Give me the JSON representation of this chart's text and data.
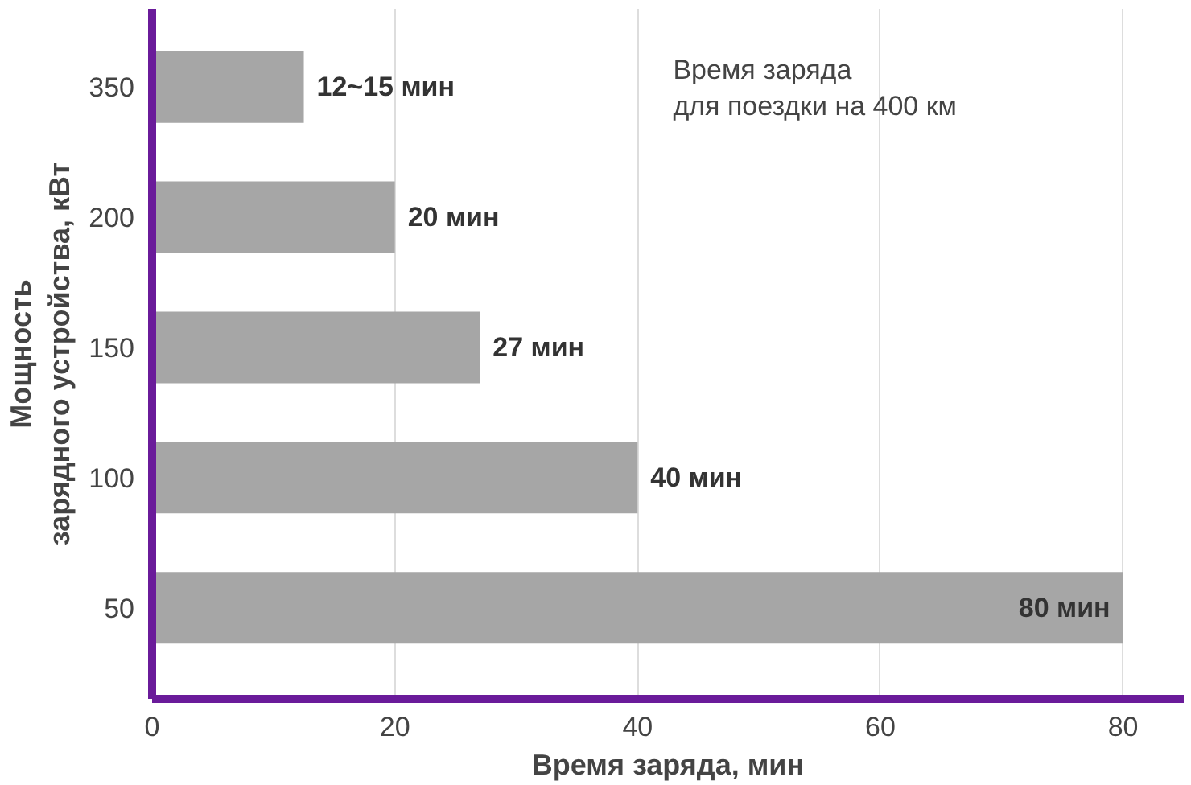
{
  "chart_data": {
    "type": "bar",
    "orientation": "horizontal",
    "xlabel": "Время заряда, мин",
    "ylabel": "Мощность\nзарядного устройства, кВт",
    "categories": [
      "350",
      "200",
      "150",
      "100",
      "50"
    ],
    "values": [
      12.5,
      20,
      27,
      40,
      80
    ],
    "value_labels": [
      "12~15 мин",
      "20 мин",
      "27 мин",
      "40 мин",
      "80 мин"
    ],
    "color": "#a6a6a6",
    "xlim": [
      0,
      85
    ],
    "xticks": [
      0,
      20,
      40,
      60,
      80
    ],
    "grid": "x",
    "annotations": [
      "Время заряда\nдля поездки на 400 км"
    ]
  }
}
